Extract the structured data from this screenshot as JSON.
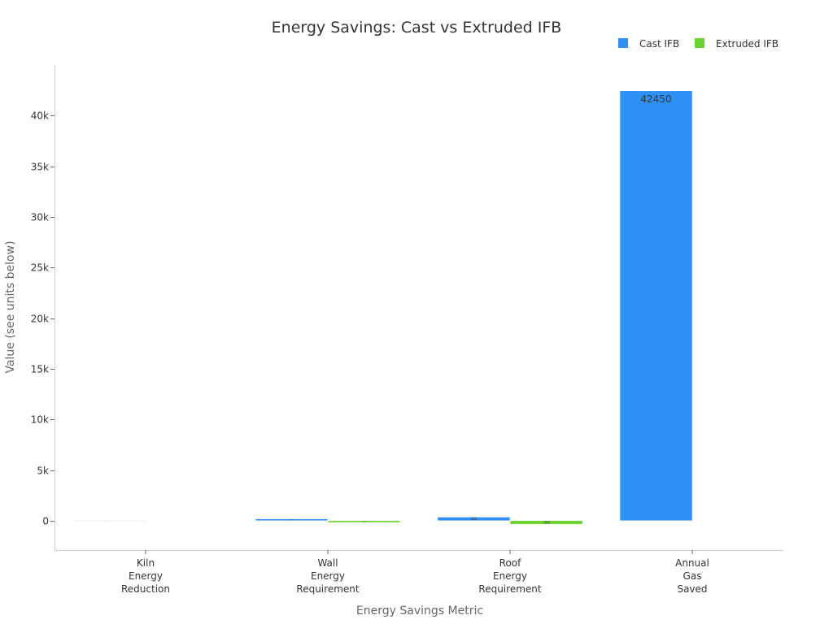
{
  "chart_data": {
    "type": "bar",
    "title": "Energy Savings: Cast vs Extruded IFB",
    "xlabel": "Energy Savings Metric",
    "ylabel": "Value (see units below)",
    "categories": [
      [
        "Kiln",
        "Energy",
        "Reduction"
      ],
      [
        "Wall",
        "Energy",
        "Requirement"
      ],
      [
        "Roof",
        "Energy",
        "Requirement"
      ],
      [
        "Annual",
        "Gas",
        "Saved"
      ]
    ],
    "series": [
      {
        "name": "Cast IFB",
        "color": "#2e90f5",
        "values": [
          27,
          175,
          352,
          42450
        ],
        "labels": [
          "27",
          "175",
          "352",
          "42450"
        ]
      },
      {
        "name": "Extruded IFB",
        "color": "#6bd32e",
        "values": [
          null,
          -176,
          -350,
          null
        ],
        "labels": [
          "",
          "-176",
          "-350",
          ""
        ]
      }
    ],
    "ylim": [
      -2900,
      45000
    ],
    "yticks": [
      0,
      5000,
      10000,
      15000,
      20000,
      25000,
      30000,
      35000,
      40000
    ],
    "ytick_labels": [
      "0",
      "5k",
      "10k",
      "15k",
      "20k",
      "25k",
      "30k",
      "35k",
      "40k"
    ],
    "grid": false,
    "legend_position": "top-right"
  }
}
